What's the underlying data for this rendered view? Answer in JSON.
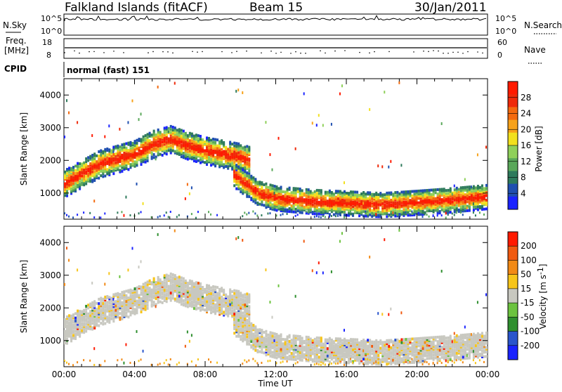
{
  "header": {
    "station": "Falkland Islands (fitACF)",
    "beam": "Beam 15",
    "date": "30/Jan/2011"
  },
  "top_panels": {
    "nsky_label": "N.Sky",
    "nsearch_label": "N.Search",
    "noise_ticks": [
      "10^5",
      "10^0"
    ],
    "freq_label_1": "Freq.",
    "freq_label_2": "[MHz]",
    "freq_ticks": [
      "18",
      "8"
    ],
    "nave_label": "Nave",
    "nave_ticks": [
      "60",
      "0"
    ],
    "cpid_label": "CPID",
    "cpid_value": "normal (fast) 151"
  },
  "chart_data": [
    {
      "type": "heatmap",
      "title": "",
      "xlabel": "Time UT",
      "ylabel": "Slant Range [km]",
      "xlim_hours": [
        0,
        24
      ],
      "x_tick_labels": [
        "00:00",
        "04:00",
        "08:00",
        "12:00",
        "16:00",
        "20:00",
        "00:00"
      ],
      "ylim": [
        200,
        4500
      ],
      "y_ticks": [
        1000,
        2000,
        3000,
        4000
      ],
      "colorbar": {
        "label": "Power [dB]",
        "ticks": [
          4,
          8,
          12,
          16,
          20,
          24,
          28
        ],
        "colors": [
          "#1a23ff",
          "#1f4fb0",
          "#2e7a5c",
          "#5aa85a",
          "#8fd05a",
          "#f2e01e",
          "#f7a21a",
          "#f46a0f",
          "#ef2a0a",
          "#ff1a00"
        ]
      },
      "echo_bands": [
        {
          "t": [
            0,
            2,
            4,
            5,
            6,
            7,
            8,
            9,
            10,
            10.5
          ],
          "r": [
            1300,
            1900,
            2200,
            2500,
            2650,
            2450,
            2300,
            2200,
            2100,
            2000
          ]
        },
        {
          "t": [
            9.5,
            11,
            12,
            14,
            16,
            18,
            20,
            22,
            24
          ],
          "r": [
            1600,
            1000,
            850,
            750,
            700,
            650,
            720,
            800,
            900
          ]
        }
      ]
    },
    {
      "type": "heatmap",
      "title": "",
      "xlabel": "Time UT",
      "ylabel": "Slant Range [km]",
      "xlim_hours": [
        0,
        24
      ],
      "x_tick_labels": [
        "00:00",
        "04:00",
        "08:00",
        "12:00",
        "16:00",
        "20:00",
        "00:00"
      ],
      "ylim": [
        200,
        4500
      ],
      "y_ticks": [
        1000,
        2000,
        3000,
        4000
      ],
      "colorbar": {
        "label": "Velocity [m s^-1]",
        "ticks": [
          "200",
          "100",
          "50",
          "15",
          "-15",
          "-50",
          "-100",
          "-200"
        ],
        "colors": [
          "#1a23ff",
          "#2a55cc",
          "#2f8f2f",
          "#6cc33f",
          "#c8c8c0",
          "#f7c51a",
          "#f28a16",
          "#f05a10",
          "#ff1a00"
        ]
      }
    }
  ],
  "axis": {
    "time_label": "Time UT",
    "range_label": "Slant Range [km]",
    "power_label": "Power [dB]",
    "velocity_label": "Velocity [m s",
    "velocity_exp": "-1",
    "velocity_close": "]"
  }
}
